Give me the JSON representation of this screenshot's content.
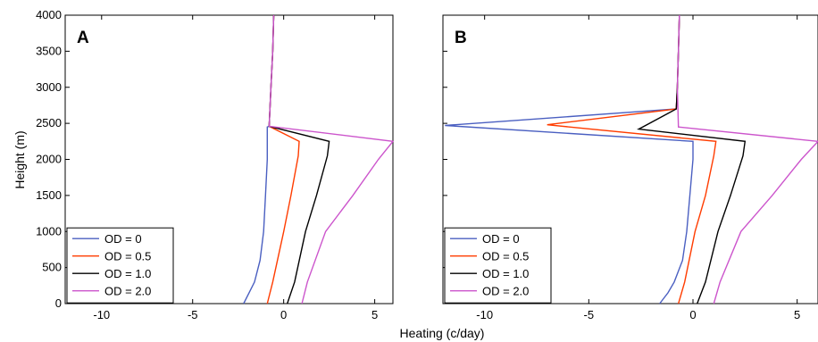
{
  "xlabel": "Heating (c/day)",
  "ylabel": "Height (m)",
  "chart_data": [
    {
      "type": "line",
      "panel_label": "A",
      "xlim": [
        -12,
        6
      ],
      "ylim": [
        0,
        4000
      ],
      "xticks": [
        -10,
        -5,
        0,
        5
      ],
      "yticks": [
        0,
        500,
        1000,
        1500,
        2000,
        2500,
        3000,
        3500,
        4000
      ],
      "legend_position": "bottom-left",
      "series": [
        {
          "name": "OD = 0",
          "color": "#4a5fc1",
          "points": [
            [
              -2.2,
              0
            ],
            [
              -1.9,
              150
            ],
            [
              -1.6,
              300
            ],
            [
              -1.3,
              600
            ],
            [
              -1.1,
              1000
            ],
            [
              -1.0,
              1500
            ],
            [
              -0.9,
              2000
            ],
            [
              -0.9,
              2200
            ],
            [
              -0.9,
              2450
            ],
            [
              -0.8,
              2460
            ],
            [
              -0.7,
              3000
            ],
            [
              -0.6,
              3500
            ],
            [
              -0.55,
              4000
            ]
          ]
        },
        {
          "name": "OD = 0.5",
          "color": "#ff3c00",
          "points": [
            [
              -0.9,
              0
            ],
            [
              -0.6,
              300
            ],
            [
              0.0,
              1000
            ],
            [
              0.4,
              1500
            ],
            [
              0.8,
              2050
            ],
            [
              0.85,
              2250
            ],
            [
              -0.8,
              2460
            ],
            [
              -0.7,
              3000
            ],
            [
              -0.6,
              3500
            ],
            [
              -0.55,
              4000
            ]
          ]
        },
        {
          "name": "OD = 1.0",
          "color": "#000000",
          "points": [
            [
              0.2,
              0
            ],
            [
              0.6,
              300
            ],
            [
              1.2,
              1000
            ],
            [
              1.8,
              1500
            ],
            [
              2.4,
              2050
            ],
            [
              2.5,
              2250
            ],
            [
              -0.8,
              2460
            ],
            [
              -0.7,
              3000
            ],
            [
              -0.6,
              3500
            ],
            [
              -0.55,
              4000
            ]
          ]
        },
        {
          "name": "OD = 2.0",
          "color": "#cc55cc",
          "points": [
            [
              1.0,
              0
            ],
            [
              1.3,
              300
            ],
            [
              2.3,
              1000
            ],
            [
              3.8,
              1500
            ],
            [
              5.2,
              2000
            ],
            [
              6.0,
              2250
            ],
            [
              -0.8,
              2460
            ],
            [
              -0.7,
              3000
            ],
            [
              -0.6,
              3500
            ],
            [
              -0.55,
              4000
            ]
          ]
        }
      ]
    },
    {
      "type": "line",
      "panel_label": "B",
      "xlim": [
        -12,
        6
      ],
      "ylim": [
        0,
        4000
      ],
      "xticks": [
        -10,
        -5,
        0,
        5
      ],
      "yticks": [
        0,
        500,
        1000,
        1500,
        2000,
        2500,
        3000,
        3500,
        4000
      ],
      "legend_position": "bottom-left",
      "series": [
        {
          "name": "OD = 0",
          "color": "#4a5fc1",
          "points": [
            [
              -1.6,
              0
            ],
            [
              -1.2,
              150
            ],
            [
              -0.9,
              300
            ],
            [
              -0.5,
              600
            ],
            [
              -0.3,
              1000
            ],
            [
              -0.15,
              1500
            ],
            [
              0.0,
              2000
            ],
            [
              0.0,
              2250
            ],
            [
              -11.9,
              2470
            ],
            [
              -0.8,
              2700
            ],
            [
              -0.75,
              3000
            ],
            [
              -0.7,
              3500
            ],
            [
              -0.65,
              4000
            ]
          ]
        },
        {
          "name": "OD = 0.5",
          "color": "#ff3c00",
          "points": [
            [
              -0.7,
              0
            ],
            [
              -0.4,
              300
            ],
            [
              0.1,
              1000
            ],
            [
              0.6,
              1500
            ],
            [
              1.0,
              2050
            ],
            [
              1.1,
              2250
            ],
            [
              -7.0,
              2480
            ],
            [
              -0.8,
              2700
            ],
            [
              -0.75,
              3000
            ],
            [
              -0.7,
              3500
            ],
            [
              -0.65,
              4000
            ]
          ]
        },
        {
          "name": "OD = 1.0",
          "color": "#000000",
          "points": [
            [
              0.2,
              0
            ],
            [
              0.6,
              300
            ],
            [
              1.2,
              1000
            ],
            [
              1.8,
              1500
            ],
            [
              2.4,
              2050
            ],
            [
              2.5,
              2250
            ],
            [
              -2.6,
              2420
            ],
            [
              -0.8,
              2700
            ],
            [
              -0.75,
              3000
            ],
            [
              -0.7,
              3500
            ],
            [
              -0.65,
              4000
            ]
          ]
        },
        {
          "name": "OD = 2.0",
          "color": "#cc55cc",
          "points": [
            [
              1.0,
              0
            ],
            [
              1.3,
              300
            ],
            [
              2.3,
              1000
            ],
            [
              3.8,
              1500
            ],
            [
              5.2,
              2000
            ],
            [
              6.0,
              2250
            ],
            [
              -0.7,
              2450
            ],
            [
              -0.75,
              3000
            ],
            [
              -0.7,
              3500
            ],
            [
              -0.65,
              4000
            ]
          ]
        }
      ]
    }
  ]
}
